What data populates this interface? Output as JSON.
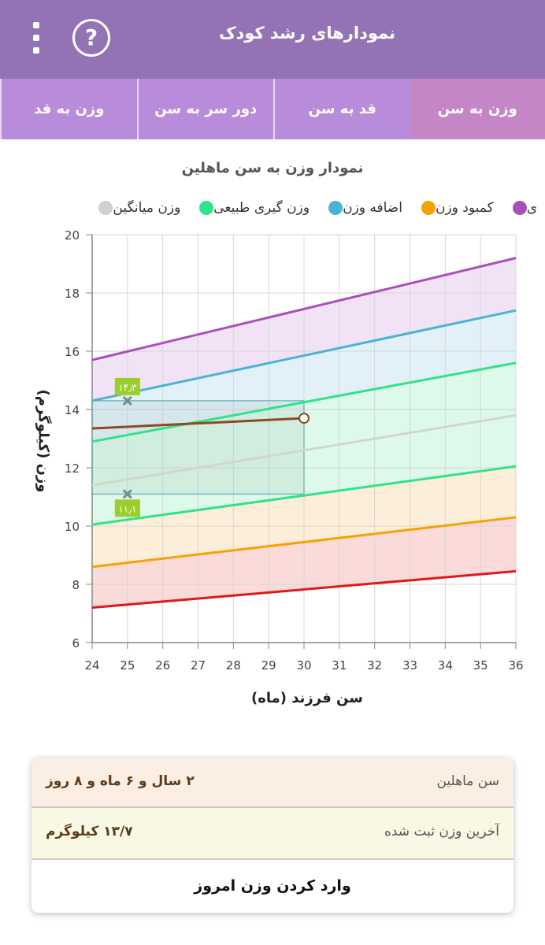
{
  "header": {
    "title": "نمودارهای رشد کودک",
    "help_icon": "question-circle-icon",
    "menu_icon": "more-vertical-icon",
    "help_glyph": "?"
  },
  "tabs": [
    {
      "label": "وزن به سن",
      "active": true
    },
    {
      "label": "قد به سن",
      "active": false
    },
    {
      "label": "دور سر به سن",
      "active": false
    },
    {
      "label": "وزن به قد",
      "active": false
    }
  ],
  "chart_title": "نمودار وزن به سن ماهلین",
  "legend": [
    {
      "label": "ی",
      "color": "#a94fb8"
    },
    {
      "label": "کمبود وزن",
      "color": "#f5a300"
    },
    {
      "label": "اضافه وزن",
      "color": "#4ab3d4"
    },
    {
      "label": "وزن گیری طبیعی",
      "color": "#2ee38a"
    },
    {
      "label": "وزن میانگین",
      "color": "#d0d0d0"
    }
  ],
  "chart_data": {
    "type": "line",
    "xlabel": "سن فرزند (ماه)",
    "ylabel": "وزن (کیلوگرم)",
    "xlim": [
      24,
      36
    ],
    "ylim": [
      6,
      20
    ],
    "x_ticks": [
      24,
      25,
      26,
      27,
      28,
      29,
      30,
      31,
      32,
      33,
      34,
      35,
      36
    ],
    "y_ticks": [
      6,
      8,
      10,
      12,
      14,
      16,
      18,
      20
    ],
    "grid": true,
    "reference_lines": [
      {
        "color": "#a94fb8",
        "y_at_24": 15.7,
        "y_at_36": 19.2
      },
      {
        "color": "#4ab3d4",
        "y_at_24": 14.3,
        "y_at_36": 17.4
      },
      {
        "color": "#2ee38a",
        "y_at_24": 12.9,
        "y_at_36": 15.6
      },
      {
        "color": "#cfd8cf",
        "y_at_24": 11.4,
        "y_at_36": 13.8
      },
      {
        "color": "#2ee38a",
        "y_at_24": 10.05,
        "y_at_36": 12.05
      },
      {
        "color": "#f5a300",
        "y_at_24": 8.6,
        "y_at_36": 10.3
      },
      {
        "color": "#e01818",
        "y_at_24": 7.2,
        "y_at_36": 8.45
      }
    ],
    "band_colors": [
      "#efe0f4",
      "#dff0f6",
      "#d9f8e8",
      "#d9f8e8",
      "#fdecd6",
      "#fbd6d6"
    ],
    "child_series": {
      "color": "#8b4a22",
      "x": [
        24,
        30
      ],
      "y": [
        13.35,
        13.7
      ]
    },
    "markers": [
      {
        "x": 25,
        "y": 14.3,
        "label": "۱۴٫۳"
      },
      {
        "x": 25,
        "y": 11.1,
        "label": "۱۱٫۱"
      }
    ],
    "highlight_range": {
      "x": [
        24,
        30
      ],
      "y": [
        11.1,
        14.3
      ]
    }
  },
  "info": {
    "age_label": "سن ماهلین",
    "age_value": "۲ سال و ۶ ماه و ۸ روز",
    "weight_label": "آخرین وزن ثبت شده",
    "weight_value": "۱۳/۷ کیلوگرم",
    "button_label": "وارد کردن وزن امروز"
  }
}
